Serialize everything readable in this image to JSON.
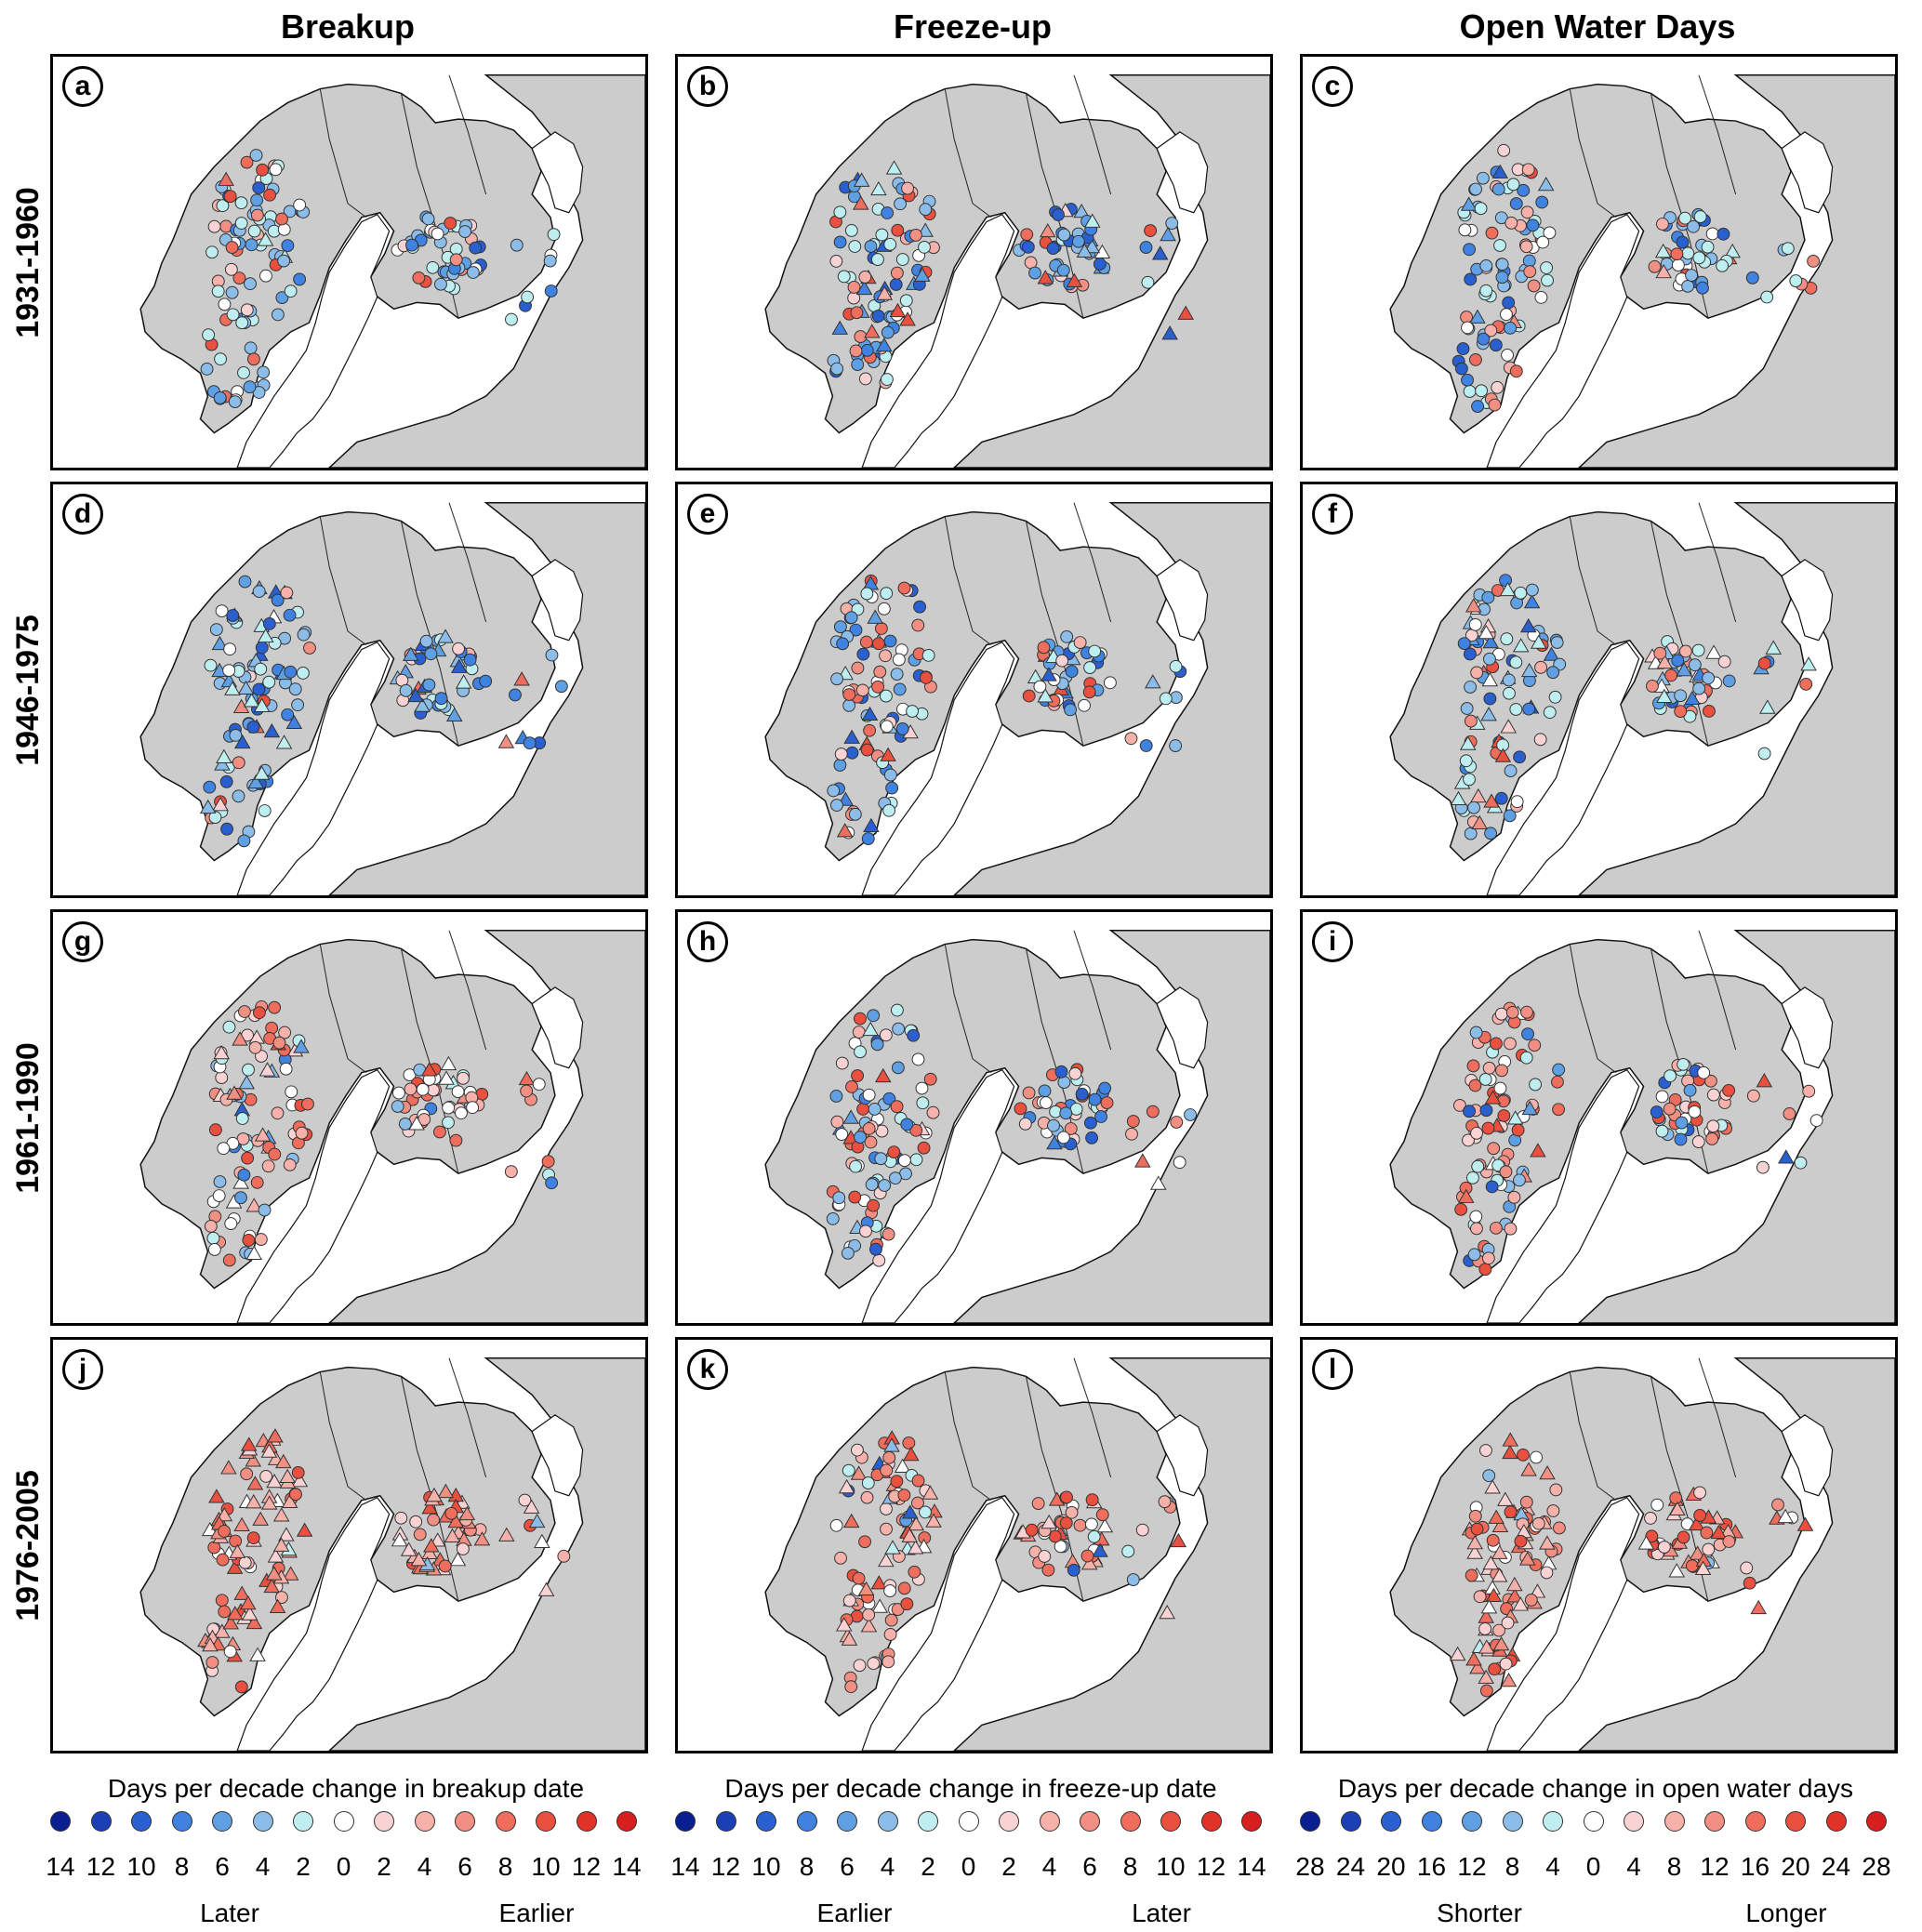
{
  "columns": [
    "Breakup",
    "Freeze-up",
    "Open Water Days"
  ],
  "rows": [
    "1931-1960",
    "1946-1975",
    "1961-1990",
    "1976-2005"
  ],
  "panels": [
    {
      "letter": "a",
      "period": "1931-1960",
      "variable": "Breakup",
      "mix": [
        0.25,
        0.45,
        0.1,
        0.2
      ],
      "tri": 0.02
    },
    {
      "letter": "b",
      "period": "1931-1960",
      "variable": "Freeze-up",
      "mix": [
        0.35,
        0.3,
        0.05,
        0.3
      ],
      "tri": 0.25
    },
    {
      "letter": "c",
      "period": "1931-1960",
      "variable": "Open Water Days",
      "mix": [
        0.25,
        0.4,
        0.1,
        0.25
      ],
      "tri": 0.1
    },
    {
      "letter": "d",
      "period": "1946-1975",
      "variable": "Breakup",
      "mix": [
        0.4,
        0.4,
        0.05,
        0.15
      ],
      "tri": 0.35
    },
    {
      "letter": "e",
      "period": "1946-1975",
      "variable": "Freeze-up",
      "mix": [
        0.35,
        0.25,
        0.1,
        0.3
      ],
      "tri": 0.15
    },
    {
      "letter": "f",
      "period": "1946-1975",
      "variable": "Open Water Days",
      "mix": [
        0.3,
        0.4,
        0.05,
        0.25
      ],
      "tri": 0.2
    },
    {
      "letter": "g",
      "period": "1961-1990",
      "variable": "Breakup",
      "mix": [
        0.05,
        0.2,
        0.2,
        0.55
      ],
      "tri": 0.12
    },
    {
      "letter": "h",
      "period": "1961-1990",
      "variable": "Freeze-up",
      "mix": [
        0.2,
        0.3,
        0.15,
        0.35
      ],
      "tri": 0.08
    },
    {
      "letter": "i",
      "period": "1961-1990",
      "variable": "Open Water Days",
      "mix": [
        0.1,
        0.25,
        0.15,
        0.5
      ],
      "tri": 0.08
    },
    {
      "letter": "j",
      "period": "1976-2005",
      "variable": "Breakup",
      "mix": [
        0.0,
        0.03,
        0.05,
        0.92
      ],
      "tri": 0.7
    },
    {
      "letter": "k",
      "period": "1976-2005",
      "variable": "Freeze-up",
      "mix": [
        0.05,
        0.1,
        0.1,
        0.75
      ],
      "tri": 0.3
    },
    {
      "letter": "l",
      "period": "1976-2005",
      "variable": "Open Water Days",
      "mix": [
        0.0,
        0.05,
        0.1,
        0.85
      ],
      "tri": 0.5
    }
  ],
  "legends": [
    {
      "title": "Days per decade change in breakup date",
      "ticks": [
        "14",
        "12",
        "10",
        "8",
        "6",
        "4",
        "2",
        "0",
        "2",
        "4",
        "6",
        "8",
        "10",
        "12",
        "14"
      ],
      "left_label": "Later",
      "right_label": "Earlier"
    },
    {
      "title": "Days per decade change in freeze-up date",
      "ticks": [
        "14",
        "12",
        "10",
        "8",
        "6",
        "4",
        "2",
        "0",
        "2",
        "4",
        "6",
        "8",
        "10",
        "12",
        "14"
      ],
      "left_label": "Earlier",
      "right_label": "Later"
    },
    {
      "title": "Days per decade change in open water days",
      "ticks": [
        "28",
        "24",
        "20",
        "16",
        "12",
        "8",
        "4",
        "0",
        "4",
        "8",
        "12",
        "16",
        "20",
        "24",
        "28"
      ],
      "left_label": "Shorter",
      "right_label": "Longer"
    }
  ],
  "legend_colors": [
    "#0a1f8f",
    "#1b3fb5",
    "#2a5fd0",
    "#3f82e0",
    "#5f9fe3",
    "#8cbde9",
    "#bfeef0",
    "#ffffff",
    "#f9d2d4",
    "#f6b1ab",
    "#f18f82",
    "#ee6d5c",
    "#e9503f",
    "#e03325",
    "#d81e1e"
  ],
  "colors": {
    "land": "#cccccc",
    "water": "#ffffff",
    "coast": "#111111",
    "marker_edge": "#333333"
  }
}
